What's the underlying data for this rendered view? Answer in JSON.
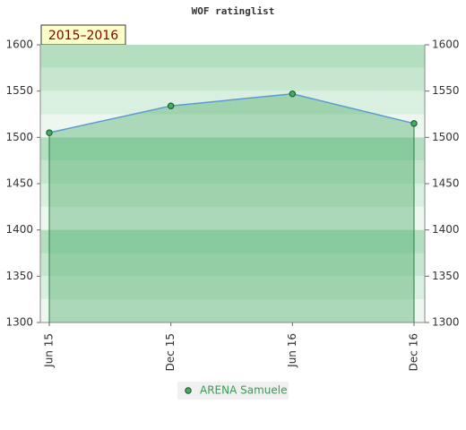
{
  "chart_data": {
    "type": "area",
    "title": "WOF ratinglist",
    "annotation": "2015–2016",
    "categories": [
      "Jun 15",
      "Dec 15",
      "Jun 16",
      "Dec 16"
    ],
    "series": [
      {
        "name": "ARENA Samuele",
        "color": "#5b9bd5",
        "values": [
          1505,
          1534,
          1547,
          1515
        ]
      }
    ],
    "ylim": [
      1300,
      1600
    ],
    "yticks": [
      1300,
      1350,
      1400,
      1450,
      1500,
      1550,
      1600
    ],
    "y2lim": [
      1300,
      1600
    ],
    "y2ticks": [
      1300,
      1350,
      1400,
      1450,
      1500,
      1550,
      1600
    ]
  }
}
